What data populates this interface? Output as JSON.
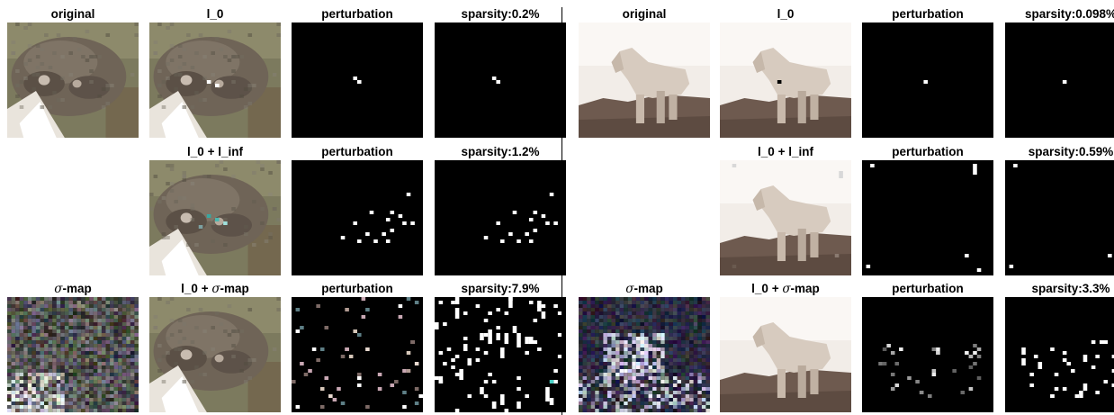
{
  "figure": {
    "panels": [
      {
        "name": "frog",
        "rows": [
          {
            "cells": [
              {
                "label": "original",
                "kind": "frog"
              },
              {
                "label": "l_0",
                "kind": "frog-adv"
              },
              {
                "label": "perturbation",
                "kind": "pert-sparse"
              },
              {
                "label": "sparsity:0.2%",
                "kind": "bin-sparse"
              }
            ]
          },
          {
            "cells": [
              null,
              {
                "label": "l_0 + l_inf",
                "kind": "frog-adv2"
              },
              {
                "label": "perturbation",
                "kind": "pert-med"
              },
              {
                "label": "sparsity:1.2%",
                "kind": "bin-med"
              }
            ]
          },
          {
            "cells": [
              {
                "label": "σ-map",
                "kind": "sigma"
              },
              {
                "label": "l_0 + σ-map",
                "kind": "frog"
              },
              {
                "label": "perturbation",
                "kind": "pert-dense"
              },
              {
                "label": "sparsity:7.9%",
                "kind": "bin-dense"
              }
            ]
          }
        ]
      },
      {
        "name": "horse",
        "rows": [
          {
            "cells": [
              {
                "label": "original",
                "kind": "horse"
              },
              {
                "label": "l_0",
                "kind": "horse-adv"
              },
              {
                "label": "perturbation",
                "kind": "pert-one"
              },
              {
                "label": "sparsity:0.098%",
                "kind": "bin-one"
              }
            ]
          },
          {
            "cells": [
              null,
              {
                "label": "l_0 + l_inf",
                "kind": "horse-adv2"
              },
              {
                "label": "perturbation",
                "kind": "pert-edge"
              },
              {
                "label": "sparsity:0.59%",
                "kind": "bin-edge"
              }
            ]
          },
          {
            "cells": [
              {
                "label": "σ-map",
                "kind": "sigma2"
              },
              {
                "label": "l_0 + σ-map",
                "kind": "horse"
              },
              {
                "label": "perturbation",
                "kind": "pert-grey"
              },
              {
                "label": "sparsity:3.3%",
                "kind": "bin-grey"
              }
            ]
          }
        ]
      }
    ]
  }
}
